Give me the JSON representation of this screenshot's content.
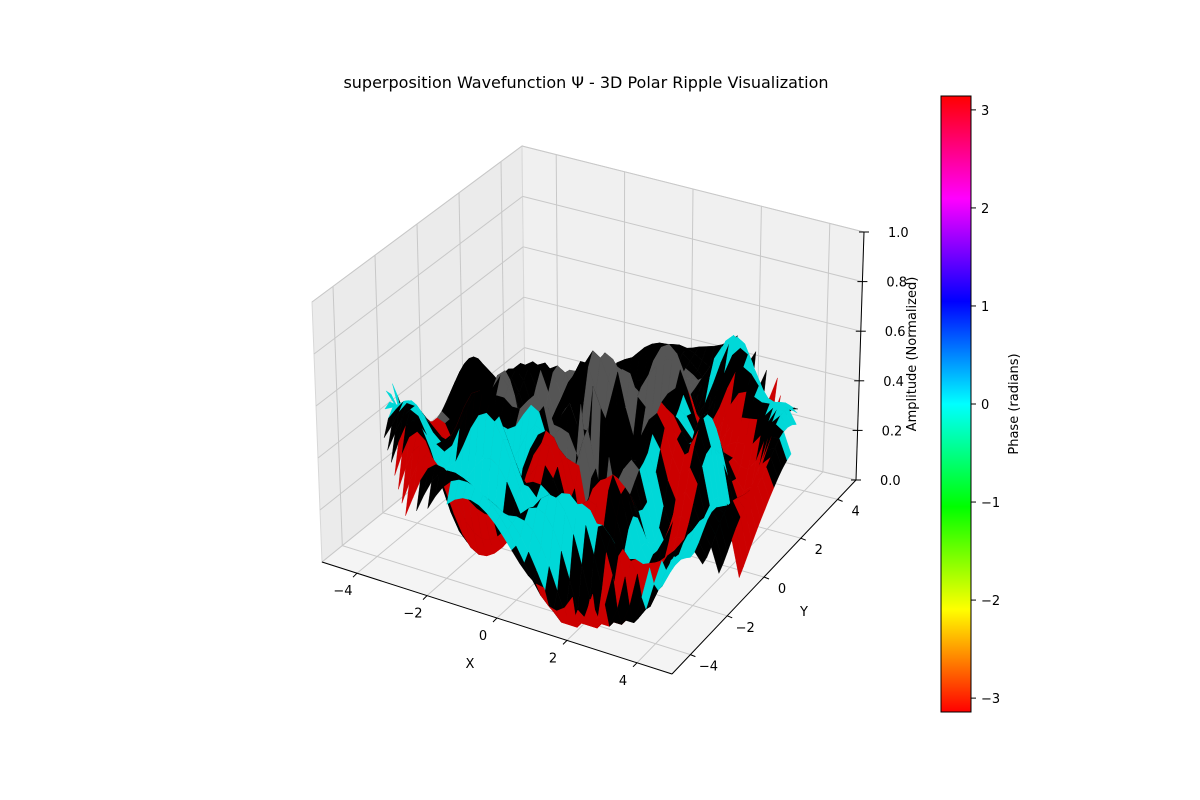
{
  "chart_data": {
    "type": "surface",
    "title": "superposition Wavefunction Ψ - 3D Polar Ripple Visualization",
    "xlabel": "X",
    "ylabel": "Y",
    "zlabel": "Amplitude (Normalized)",
    "xlim": [
      -5,
      5
    ],
    "ylim": [
      -5,
      5
    ],
    "zlim": [
      0,
      1
    ],
    "x_ticks": [
      -4,
      -2,
      0,
      2,
      4
    ],
    "y_ticks": [
      -4,
      -2,
      0,
      2,
      4
    ],
    "z_ticks": [
      0.0,
      0.2,
      0.4,
      0.6,
      0.8,
      1.0
    ],
    "z_tick_labels": [
      "0.0",
      "0.2",
      "0.4",
      "0.6",
      "0.8",
      "1.0"
    ],
    "grid": true,
    "colorbar": {
      "label": "Phase (radians)",
      "range": [
        -3.14159,
        3.14159
      ],
      "ticks": [
        -3,
        -2,
        -1,
        0,
        1,
        2,
        3
      ],
      "tick_labels": [
        "−3",
        "−2",
        "−1",
        "0",
        "1",
        "2",
        "3"
      ],
      "colormap": "hsv",
      "colors": [
        "#ff0000",
        "#ffff00",
        "#00ff00",
        "#00ffff",
        "#0000ff",
        "#ff00ff",
        "#ff0000"
      ]
    },
    "surface_colors": {
      "shadow": "#000000",
      "gray": "#555555",
      "red": "#cc0000",
      "cyan": "#00d8d8"
    }
  }
}
